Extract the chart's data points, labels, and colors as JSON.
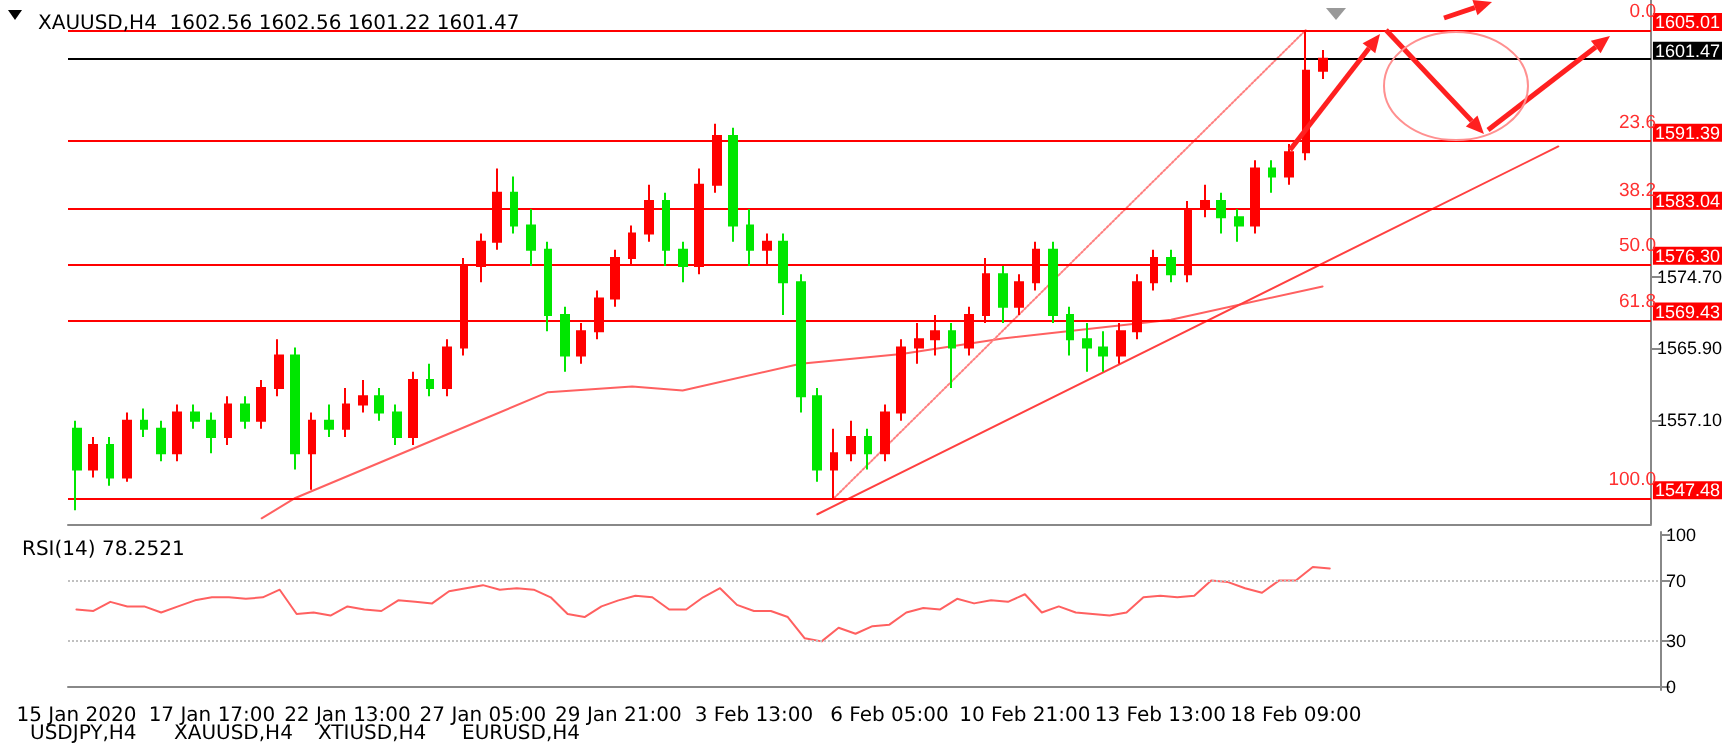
{
  "chart_data": [
    {
      "type": "candlestick",
      "title": "XAUUSD,H4  1602.56 1602.56 1601.22 1601.47",
      "tick_labels": "y",
      "categories": [
        null,
        null,
        null,
        null,
        null,
        null,
        null,
        null,
        null,
        null,
        null,
        null,
        null,
        null,
        null,
        null,
        null,
        null,
        null,
        null,
        null,
        null,
        null,
        null,
        null,
        null,
        null,
        null,
        null,
        null,
        null,
        null,
        null,
        null,
        null,
        null,
        null,
        null,
        null,
        null,
        null,
        null,
        null,
        null,
        null,
        null,
        null,
        null,
        null,
        null,
        null,
        null,
        null,
        null,
        null,
        null,
        null,
        null,
        null,
        null,
        null,
        null,
        null,
        null,
        null,
        null,
        null,
        null,
        null,
        null,
        null,
        null,
        null,
        null,
        null,
        null,
        null,
        null,
        null,
        null,
        null,
        null,
        null,
        null,
        null,
        null,
        null,
        null,
        null,
        null,
        null,
        null,
        null,
        null
      ],
      "colors": [
        "#00e600",
        "#ff0000",
        "#00e600",
        "#ff0000",
        "#00e600",
        "#00e600",
        "#ff0000",
        "#00e600",
        "#00e600",
        "#ff0000",
        "#00e600",
        "#ff0000",
        "#ff0000",
        "#00e600",
        "#ff0000",
        "#00e600",
        "#ff0000",
        "#ff0000",
        "#00e600",
        "#00e600",
        "#ff0000",
        "#00e600",
        "#ff0000",
        "#ff0000",
        "#ff0000",
        "#ff0000",
        "#00e600",
        "#00e600",
        "#00e600",
        "#00e600",
        "#ff0000",
        "#ff0000",
        "#ff0000",
        "#ff0000",
        "#ff0000",
        "#00e600",
        "#00e600",
        "#ff0000",
        "#ff0000",
        "#00e600",
        "#00e600",
        "#ff0000",
        "#00e600",
        "#00e600",
        "#00e600",
        "#ff0000",
        "#ff0000",
        "#00e600",
        "#ff0000",
        "#ff0000",
        "#ff0000",
        "#ff0000",
        "#00e600",
        "#ff0000",
        "#ff0000",
        "#00e600",
        "#ff0000",
        "#ff0000",
        "#00e600",
        "#00e600",
        "#00e600",
        "#00e600",
        "#ff0000",
        "#ff0000",
        "#ff0000",
        "#00e600",
        "#ff0000",
        "#ff0000",
        "#00e600",
        "#00e600",
        "#ff0000",
        "#00e600",
        "#ff0000",
        "#ff0000",
        "#ff0000",
        null,
        null,
        null,
        null,
        null,
        null,
        null,
        null,
        null,
        null,
        null,
        null,
        null,
        null,
        null,
        null,
        null,
        null,
        null
      ],
      "ohlc": [
        [
          1556,
          1557,
          1546,
          1551
        ],
        [
          1551,
          1555,
          1550,
          1554
        ],
        [
          1554,
          1555,
          1549,
          1550
        ],
        [
          1550,
          1558,
          1549.5,
          1557
        ],
        [
          1557,
          1558.5,
          1555,
          1556
        ],
        [
          1556,
          1557,
          1552,
          1553
        ],
        [
          1553,
          1559,
          1552,
          1558
        ],
        [
          1558,
          1559,
          1556,
          1557
        ],
        [
          1557,
          1558,
          1553,
          1555
        ],
        [
          1555,
          1560,
          1554,
          1559
        ],
        [
          1559,
          1560,
          1556,
          1557
        ],
        [
          1557,
          1562,
          1556,
          1561
        ],
        [
          1561,
          1567,
          1560,
          1565
        ],
        [
          1565,
          1566,
          1551,
          1553
        ],
        [
          1553,
          1558,
          1548.5,
          1557
        ],
        [
          1557,
          1559,
          1555,
          1556
        ],
        [
          1556,
          1561,
          1555,
          1559
        ],
        [
          1559,
          1562,
          1558,
          1560
        ],
        [
          1560,
          1561,
          1557,
          1558
        ],
        [
          1558,
          1559,
          1554,
          1555
        ],
        [
          1555,
          1563,
          1554,
          1562
        ],
        [
          1562,
          1564,
          1560,
          1561
        ],
        [
          1561,
          1567,
          1560,
          1566
        ],
        [
          1566,
          1577,
          1565,
          1576
        ],
        [
          1576,
          1580,
          1574,
          1579
        ],
        [
          1579,
          1588,
          1578,
          1585
        ],
        [
          1585,
          1587,
          1580,
          1581
        ],
        [
          1581,
          1583,
          1576,
          1578
        ],
        [
          1578,
          1579,
          1568,
          1570
        ],
        [
          1570,
          1571,
          1563,
          1565
        ],
        [
          1565,
          1569,
          1564,
          1568
        ],
        [
          1568,
          1573,
          1567,
          1572
        ],
        [
          1572,
          1578,
          1571,
          1577
        ],
        [
          1577,
          1581,
          1576,
          1580
        ],
        [
          1580,
          1586,
          1579,
          1584
        ],
        [
          1584,
          1585,
          1576,
          1578
        ],
        [
          1578,
          1579,
          1574,
          1576
        ],
        [
          1576,
          1588,
          1575,
          1586
        ],
        [
          1586,
          1593.5,
          1585,
          1592
        ],
        [
          1592,
          1593,
          1579,
          1581
        ],
        [
          1581,
          1583,
          1576,
          1578
        ],
        [
          1578,
          1580,
          1576,
          1579
        ],
        [
          1579,
          1580,
          1570,
          1574
        ],
        [
          1574,
          1575,
          1558,
          1560
        ],
        [
          1560,
          1561,
          1549.5,
          1551
        ],
        [
          1551,
          1556,
          1547.48,
          1553
        ],
        [
          1553,
          1557,
          1552,
          1555
        ],
        [
          1555,
          1556,
          1551,
          1553
        ],
        [
          1553,
          1559,
          1552,
          1558
        ],
        [
          1558,
          1567,
          1557,
          1566
        ],
        [
          1566,
          1569,
          1564,
          1567
        ],
        [
          1567,
          1570,
          1565,
          1568
        ],
        [
          1568,
          1569,
          1561,
          1566
        ],
        [
          1566,
          1571,
          1565,
          1570
        ],
        [
          1570,
          1577,
          1569,
          1575
        ],
        [
          1575,
          1576,
          1569,
          1571
        ],
        [
          1571,
          1575,
          1570,
          1574
        ],
        [
          1574,
          1579,
          1573,
          1578
        ],
        [
          1578,
          1579,
          1569,
          1570
        ],
        [
          1570,
          1571,
          1565,
          1567
        ],
        [
          1567,
          1569,
          1563,
          1566
        ],
        [
          1566,
          1568,
          1563,
          1565
        ],
        [
          1565,
          1569,
          1564,
          1568
        ],
        [
          1568,
          1575,
          1567,
          1574
        ],
        [
          1574,
          1578,
          1573,
          1577
        ],
        [
          1577,
          1578,
          1574,
          1575
        ],
        [
          1575,
          1584,
          1574,
          1583
        ],
        [
          1583,
          1586,
          1582,
          1584
        ],
        [
          1584,
          1585,
          1580,
          1582
        ],
        [
          1582,
          1583,
          1579,
          1581
        ],
        [
          1581,
          1589,
          1580,
          1588
        ],
        [
          1588,
          1589,
          1585,
          1587
        ],
        [
          1587,
          1591,
          1586,
          1590
        ],
        [
          1590,
          1605.01,
          1589,
          1600
        ],
        [
          1600,
          1602.56,
          1599,
          1601.47
        ],
        null,
        null,
        null,
        null,
        null,
        null,
        null,
        null,
        null,
        null,
        null,
        null,
        null,
        null,
        null,
        null,
        null,
        null,
        null
      ],
      "series": [
        {
          "type": "line",
          "color": "#ff6060",
          "values": [
            null,
            null,
            null,
            null,
            null,
            null,
            null,
            null,
            null,
            null,
            null,
            1545,
            null,
            1547.5,
            null,
            null,
            null,
            null,
            null,
            null,
            null,
            null,
            1555.3,
            null,
            null,
            null,
            null,
            null,
            1560.5,
            null,
            null,
            null,
            null,
            1561.2,
            null,
            null,
            1560.7,
            null,
            null,
            null,
            null,
            null,
            null,
            1564,
            null,
            null,
            null,
            null,
            null,
            1565.2,
            null,
            null,
            null,
            null,
            null,
            1567.1,
            null,
            null,
            null,
            null,
            null,
            null,
            null,
            null,
            null,
            1569.4,
            null,
            null,
            null,
            null,
            null,
            null,
            null,
            null,
            1573.5,
            null,
            null,
            null,
            null,
            null,
            null,
            null,
            null,
            null,
            null,
            null,
            null,
            null,
            null,
            null,
            null,
            null,
            null,
            null
          ]
        },
        {
          "type": "line",
          "color": "#ff4040",
          "values": [
            null,
            null,
            null,
            null,
            null,
            null,
            null,
            null,
            null,
            null,
            null,
            null,
            null,
            null,
            null,
            null,
            null,
            null,
            null,
            null,
            null,
            null,
            null,
            null,
            null,
            null,
            null,
            null,
            null,
            null,
            null,
            null,
            null,
            null,
            null,
            null,
            null,
            null,
            null,
            null,
            null,
            null,
            null,
            null,
            1545.5,
            null,
            null,
            null,
            null,
            null,
            null,
            null,
            null,
            null,
            null,
            null,
            null,
            null,
            null,
            null,
            null,
            null,
            null,
            null,
            null,
            null,
            null,
            null,
            null,
            null,
            null,
            null,
            null,
            null,
            null,
            null,
            null,
            null,
            null,
            null,
            null,
            null,
            null,
            null,
            null,
            null,
            null,
            null,
            1590.7,
            null,
            null,
            null,
            null,
            null
          ]
        },
        {
          "type": "line",
          "color": "#ff8080",
          "line_style": "dotted",
          "values": [
            null,
            null,
            null,
            null,
            null,
            null,
            null,
            null,
            null,
            null,
            null,
            null,
            null,
            null,
            null,
            null,
            null,
            null,
            null,
            null,
            null,
            null,
            null,
            null,
            null,
            null,
            null,
            null,
            null,
            null,
            null,
            null,
            null,
            null,
            null,
            null,
            null,
            null,
            null,
            null,
            null,
            null,
            null,
            null,
            null,
            1547.5,
            null,
            null,
            null,
            null,
            null,
            null,
            null,
            null,
            null,
            null,
            null,
            null,
            null,
            null,
            null,
            null,
            null,
            null,
            null,
            null,
            null,
            null,
            null,
            null,
            null,
            null,
            null,
            1605,
            null,
            null,
            null,
            null,
            null,
            null,
            null,
            null,
            null,
            null,
            null,
            null,
            null,
            null,
            null,
            null,
            null,
            null,
            null,
            null
          ]
        }
      ],
      "ylim": [
        1544.3,
        1608.7
      ],
      "yticks": [
        {
          "value": 1557.1,
          "label": "1557.10"
        },
        {
          "value": 1565.9,
          "label": "1565.90"
        },
        {
          "value": 1574.7,
          "label": "1574.70"
        }
      ],
      "ref_lines": [
        {
          "axis": "y",
          "value": 1605.01,
          "label": "1605.01",
          "color": "#ff0000"
        },
        {
          "axis": "y",
          "value": 1601.47,
          "label": "1601.47",
          "color": "#000000"
        },
        {
          "axis": "y",
          "value": 1591.39,
          "label": "1591.39",
          "color": "#ff0000"
        },
        {
          "axis": "y",
          "value": 1583.04,
          "label": "1583.04",
          "color": "#ff0000"
        },
        {
          "axis": "y",
          "value": 1576.3,
          "label": "1576.30",
          "color": "#ff0000"
        },
        {
          "axis": "y",
          "value": 1569.43,
          "label": "1569.43",
          "color": "#ff0000"
        },
        {
          "axis": "y",
          "value": 1547.48,
          "label": "1547.48",
          "color": "#ff0000"
        }
      ],
      "annotations": [
        {
          "text": "0.0",
          "y": 1605.01
        },
        {
          "text": "23.6",
          "y": 1591.39
        },
        {
          "text": "38.2",
          "y": 1583.04
        },
        {
          "text": "50.0",
          "y": 1576.3
        },
        {
          "text": "61.8",
          "y": 1569.43
        },
        {
          "text": "100.0",
          "y": 1547.48
        }
      ]
    },
    {
      "type": "line",
      "title": "RSI(14) 78.2521",
      "categories": [
        "15 Jan 2020",
        null,
        null,
        null,
        null,
        null,
        null,
        null,
        "17 Jan 17:00",
        null,
        null,
        null,
        null,
        null,
        null,
        null,
        "22 Jan 13:00",
        null,
        null,
        null,
        null,
        null,
        null,
        null,
        "27 Jan 05:00",
        null,
        null,
        null,
        null,
        null,
        null,
        null,
        "29 Jan 21:00",
        null,
        null,
        null,
        null,
        null,
        null,
        null,
        "3 Feb 13:00",
        null,
        null,
        null,
        null,
        null,
        null,
        null,
        "6 Feb 05:00",
        null,
        null,
        null,
        null,
        null,
        null,
        null,
        "10 Feb 21:00",
        null,
        null,
        null,
        null,
        null,
        null,
        null,
        "13 Feb 13:00",
        null,
        null,
        null,
        null,
        null,
        null,
        null,
        "18 Feb 09:00",
        null,
        null,
        null,
        null,
        null,
        null,
        null,
        null,
        null,
        null,
        null,
        null,
        null,
        null,
        null,
        null,
        null,
        null,
        null,
        null,
        null
      ],
      "series": [
        {
          "color": "#ff6060",
          "values": [
            51,
            50,
            56,
            53,
            53,
            49,
            53,
            57,
            59,
            59,
            58,
            59,
            64,
            48,
            49,
            47,
            53,
            51,
            50,
            57,
            56,
            55,
            63,
            65,
            67,
            64,
            65,
            64,
            59,
            48,
            46,
            53,
            57,
            60,
            59,
            51,
            51,
            59,
            65,
            54,
            50,
            50,
            46,
            32,
            30,
            39,
            35,
            40,
            41,
            49,
            52,
            51,
            58,
            55,
            57,
            56,
            61,
            49,
            53,
            49,
            48,
            47,
            49,
            59,
            60,
            59,
            60,
            70,
            69,
            65,
            62,
            70,
            70,
            79,
            78,
            null,
            null,
            null,
            null,
            null,
            null,
            null,
            null,
            null,
            null,
            null,
            null,
            null,
            null,
            null,
            null,
            null,
            null,
            null
          ]
        }
      ],
      "ylim": [
        -2,
        102
      ],
      "yticks": [
        0,
        30,
        70,
        100
      ],
      "ref_lines": [
        {
          "axis": "y",
          "value": 30,
          "color": "#c0c0c0",
          "line_style": "dotted"
        },
        {
          "axis": "y",
          "value": 70,
          "color": "#c0c0c0",
          "line_style": "dotted"
        }
      ],
      "annotations": [
        "USDJPY,H4",
        "XAUUSD,H4",
        "XTIUSD,H4",
        "EURUSD,H4"
      ]
    }
  ]
}
